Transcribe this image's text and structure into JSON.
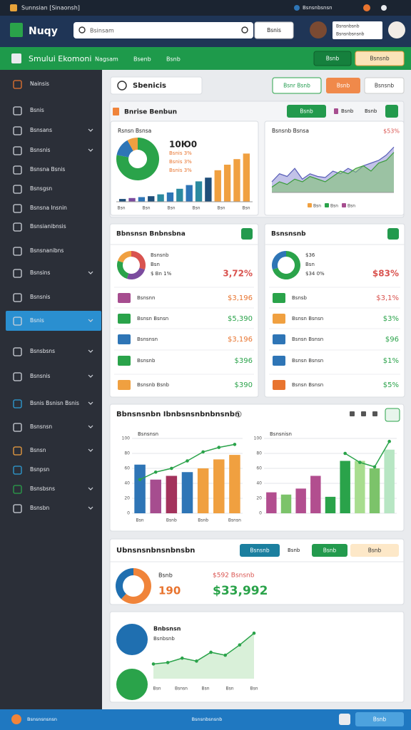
{
  "topbar": {
    "title": "Sunnsian [Sinaonsh]",
    "user": "Bsnsnbsnsn"
  },
  "header": {
    "logo": "Nuqy",
    "search": "Bsinsam",
    "search_button": "Bsnis",
    "account": [
      "Bsnsnbsnb",
      "Bsnsnbsnsnb"
    ]
  },
  "nav": {
    "brand": "Smului Ekomoni",
    "links": [
      "Nagsam",
      "Bsenb",
      "Bsnb"
    ],
    "buttons": [
      "Bsnb",
      "Bsnsnb"
    ]
  },
  "sidebar": {
    "items": [
      "Nainsis",
      "Bsnis",
      "Bsnsans",
      "Bsnsnis",
      "Bsnsna Bsnis",
      "Bsnsgsn",
      "Bsnsna Insnin",
      "Bsnsianibnsis",
      "Bsnsnanibns",
      "Bsnsins",
      "Bsnsnis",
      "Bsnis",
      "Bsnsbsns",
      "Bsnsnis",
      "Bsnis Bsnisn Bsnis",
      "Bsnsnsn",
      "Bsnsn",
      "Bsnpsn",
      "Bsnsbsns",
      "Bsnsbn"
    ],
    "active": 11
  },
  "page": {
    "title": "Sbenicis",
    "buttons": [
      "Bsnr Bsnb",
      "Bsnb",
      "Bsnsnb"
    ]
  },
  "overview": {
    "title": "Bnrise Benbun",
    "buttons": [
      "Bsnb",
      "Bsnb",
      "Bsnb"
    ],
    "left": {
      "label": "Rsnsn Bsnsa",
      "value": "10Ю0",
      "notes": [
        "Bsnis 3%",
        "Bsnis 3%",
        "Bsnis 3%"
      ],
      "donut": {
        "values": [
          78,
          14,
          8
        ],
        "colors": [
          "#2aa34a",
          "#2e75b6",
          "#f0a040"
        ]
      },
      "bars": {
        "values": [
          3,
          4,
          5,
          6,
          8,
          10,
          14,
          18,
          22,
          26,
          34,
          40,
          46,
          52
        ],
        "colors": [
          "#1f4e79",
          "#7b4b9e",
          "#2e75b6",
          "#1f4e79",
          "#2b8aa0",
          "#2e75b6",
          "#2b8aa0",
          "#2e75b6",
          "#2b8aa0",
          "#1f4e79",
          "#f0a040",
          "#f0a040",
          "#f0a040",
          "#f0a040"
        ],
        "ylim": [
          0,
          60
        ]
      },
      "x_labels": [
        "Bsn",
        "Bsn",
        "Bsn",
        "Bsn",
        "Bsn",
        "Bsn"
      ]
    },
    "right": {
      "label": "Bsnsnb Bsnsa",
      "value": "$53%",
      "ylim": [
        0,
        100
      ],
      "series": [
        {
          "color": "#8f8fd6",
          "values": [
            20,
            35,
            30,
            45,
            25,
            35,
            30,
            28,
            40,
            35,
            45,
            38,
            50,
            55,
            60,
            70,
            85
          ]
        },
        {
          "color": "#7cc36a",
          "values": [
            10,
            20,
            15,
            25,
            20,
            30,
            25,
            20,
            30,
            40,
            35,
            45,
            50,
            40,
            55,
            60,
            75
          ]
        }
      ],
      "legend": [
        {
          "label": "Bsn",
          "color": "#f0a040"
        },
        {
          "label": "Bsn",
          "color": "#2aa34a"
        },
        {
          "label": "Bsn",
          "color": "#a64d8f"
        }
      ]
    }
  },
  "list_left": {
    "title": "Bbnsnsn Bnbnsbna",
    "summary": {
      "donut": {
        "values": [
          30,
          25,
          25,
          20
        ],
        "colors": [
          "#d9534f",
          "#7b4b9e",
          "#2aa34a",
          "#f0a040"
        ]
      },
      "lines": [
        "Bsnsnb",
        "Bsn",
        "$ Bn 1%"
      ],
      "value": "3,72%",
      "color": "#d9534f"
    },
    "rows": [
      {
        "label": "Bsnsnn",
        "value": "$3,196",
        "color": "#e8742f",
        "icon_color": "#a64d8f"
      },
      {
        "label": "Bsnsn Bsnsn",
        "value": "$5,390",
        "color": "#2aa34a",
        "icon_color": "#2aa34a"
      },
      {
        "label": "Bsnsnsn",
        "value": "$3,196",
        "color": "#e8742f",
        "icon_color": "#2e75b6"
      },
      {
        "label": "Bsnsnb",
        "value": "$396",
        "color": "#2aa34a",
        "icon_color": "#2aa34a"
      },
      {
        "label": "Bsnsnb Bsnb",
        "value": "$390",
        "color": "#2aa34a",
        "icon_color": "#f0a040"
      }
    ]
  },
  "list_right": {
    "title": "Bsnsnsnb",
    "summary": {
      "donut": {
        "values": [
          70,
          30
        ],
        "colors": [
          "#2aa34a",
          "#2e75b6"
        ]
      },
      "lines": [
        "$36",
        "Bsn",
        "$34 0%"
      ],
      "value": "$83%",
      "color": "#d9534f"
    },
    "rows": [
      {
        "label": "Bsnsb",
        "value": "$3,1%",
        "color": "#d9534f",
        "icon_color": "#2aa34a"
      },
      {
        "label": "Bsnsn Bsnsn",
        "value": "$3%",
        "color": "#2aa34a",
        "icon_color": "#f0a040"
      },
      {
        "label": "Bsnsn Bsnsn",
        "value": "$96",
        "color": "#2aa34a",
        "icon_color": "#2e75b6"
      },
      {
        "label": "Bsnsn Bsnsn",
        "value": "$1%",
        "color": "#2aa34a",
        "icon_color": "#2e75b6"
      },
      {
        "label": "Bsnsn Bsnsn",
        "value": "$5%",
        "color": "#2aa34a",
        "icon_color": "#e8742f"
      }
    ]
  },
  "combo": {
    "title": "Bbnsnsnbn Ibnbsnsnbnbnsnbn",
    "left": {
      "label": "Bsnsnsn",
      "ylim": [
        0,
        100
      ],
      "yticks": [
        0,
        20,
        40,
        60,
        80,
        100
      ],
      "grid": true,
      "categories": [
        "Bsn",
        null,
        "Bsnb",
        null,
        "Bsnb",
        null,
        "Bsnsn"
      ],
      "bars": {
        "values": [
          65,
          45,
          50,
          55,
          60,
          72,
          78
        ],
        "colors": [
          "#2e75b6",
          "#a64d8f",
          "#a3335c",
          "#2e75b6",
          "#f0a040",
          "#f0a040",
          "#f0a040"
        ]
      },
      "line": {
        "values": [
          45,
          55,
          60,
          70,
          82,
          88,
          92
        ],
        "color": "#2aa34a"
      }
    },
    "right": {
      "label": "Bsnsnisn",
      "ylim": [
        0,
        100
      ],
      "yticks": [
        0,
        20,
        40,
        60,
        80,
        100
      ],
      "grid": true,
      "bars": {
        "values": [
          28,
          25,
          33,
          50,
          22,
          70,
          70,
          60,
          85
        ],
        "colors": [
          "#b24e8f",
          "#7cc36a",
          "#b24e8f",
          "#b24e8f",
          "#2aa34a",
          "#2aa34a",
          "#a8dd8f",
          "#7cc36a",
          "#b7e6c3"
        ]
      },
      "line": {
        "values": [
          null,
          null,
          null,
          null,
          null,
          80,
          68,
          62,
          96
        ],
        "color": "#2aa34a"
      }
    }
  },
  "summary": {
    "title": "Ubnsnsnbnsnbnsbn",
    "buttons": [
      "Bsnsnb",
      "Bsnb",
      "Bsnb",
      "Bsnb"
    ],
    "donut": {
      "values": [
        62,
        38
      ],
      "colors": [
        "#f0843a",
        "#1f6fb0"
      ]
    },
    "label": "Bsnb",
    "count": "190",
    "change": "$592 Bsnsnb",
    "total": "$33,992"
  },
  "activity": {
    "title": "Bnbsnsn",
    "subtitle": "Bsnbsnb",
    "line": {
      "values": [
        20,
        22,
        28,
        24,
        36,
        32,
        46,
        62
      ],
      "color": "#2aa34a",
      "ylim": [
        0,
        70
      ]
    },
    "x_labels": [
      "Bsn",
      "Bsnsn",
      "Bsn",
      "Bsn",
      "Bsn"
    ]
  },
  "footer": {
    "left": "Bsnsnsnsnsn",
    "center": "Bsnsnbsnsnb",
    "button": "Bsnb"
  }
}
